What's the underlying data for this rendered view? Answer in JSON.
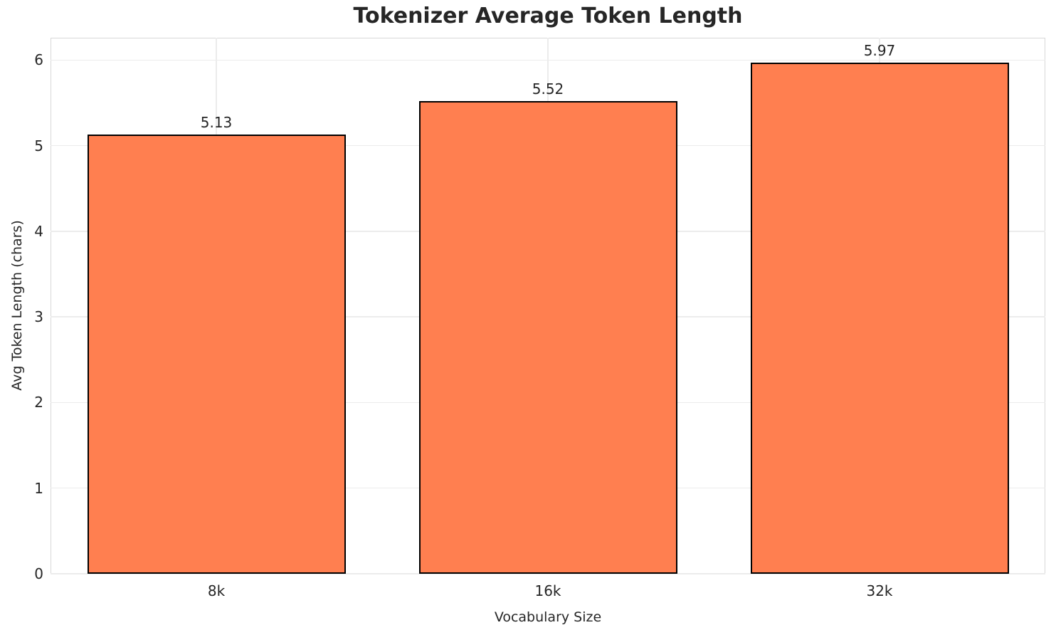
{
  "chart_data": {
    "type": "bar",
    "title": "Tokenizer Average Token Length",
    "xlabel": "Vocabulary Size",
    "ylabel": "Avg Token Length (chars)",
    "categories": [
      "8k",
      "16k",
      "32k"
    ],
    "values": [
      5.13,
      5.52,
      5.97
    ],
    "value_labels": [
      "5.13",
      "5.52",
      "5.97"
    ],
    "ylim": [
      0,
      6.26
    ],
    "yticks": [
      0,
      1,
      2,
      3,
      4,
      5,
      6
    ],
    "ytick_labels": [
      "0",
      "1",
      "2",
      "3",
      "4",
      "5",
      "6"
    ],
    "grid": true,
    "legend": false,
    "bar_color": "#FF7F50",
    "bar_edge_color": "#000000",
    "grid_color": "#ececec",
    "spine_color": "#d7d7d7",
    "text_color": "#262626",
    "background_color": "#ffffff"
  }
}
